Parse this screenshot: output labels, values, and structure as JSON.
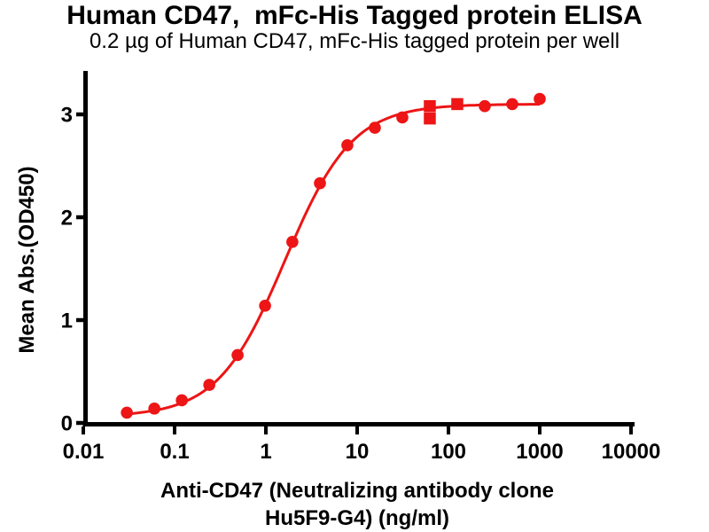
{
  "chart_data": {
    "type": "scatter",
    "title": "Human CD47,  mFc-His Tagged protein ELISA",
    "subtitle": "0.2 µg of Human CD47, mFc-His tagged protein per well",
    "ylabel": "Mean Abs.(OD450)",
    "xlabel_line1": "Anti-CD47 (Neutralizing antibody clone",
    "xlabel_line2": "Hu5F9-G4) (ng/ml)",
    "x_scale": "log10",
    "xlim": [
      0.01,
      10000
    ],
    "ylim": [
      0,
      3.45
    ],
    "grid": false,
    "legend": "none",
    "x_ticks": [
      0.01,
      0.1,
      1,
      10,
      100,
      1000,
      10000
    ],
    "x_tick_labels": [
      "0.01",
      "0.1",
      "1",
      "10",
      "100",
      "1000",
      "10000"
    ],
    "y_ticks": [
      0,
      1,
      2,
      3
    ],
    "y_tick_labels": [
      "0",
      "1",
      "2",
      "3"
    ],
    "colors": {
      "series_red": "#ED1515",
      "axis": "#000000",
      "text": "#000000"
    },
    "series": [
      {
        "name": "circle-points",
        "marker": "circle",
        "x": [
          0.03,
          0.06,
          0.12,
          0.24,
          0.49,
          0.98,
          1.95,
          3.91,
          7.81,
          15.63,
          31.25,
          250,
          500,
          1000
        ],
        "y": [
          0.1,
          0.14,
          0.22,
          0.37,
          0.66,
          1.14,
          1.76,
          2.33,
          2.7,
          2.87,
          2.97,
          3.08,
          3.1,
          3.15
        ]
      },
      {
        "name": "square-points",
        "marker": "square",
        "x": [
          62.5,
          62.5,
          125
        ],
        "y": [
          3.08,
          2.96,
          3.1
        ]
      }
    ],
    "fit_curve": {
      "model": "4PL",
      "bottom": 0.06,
      "top": 3.1,
      "ec50": 1.62,
      "hill": 1.18,
      "x_start": 0.03,
      "x_end": 1000
    }
  }
}
